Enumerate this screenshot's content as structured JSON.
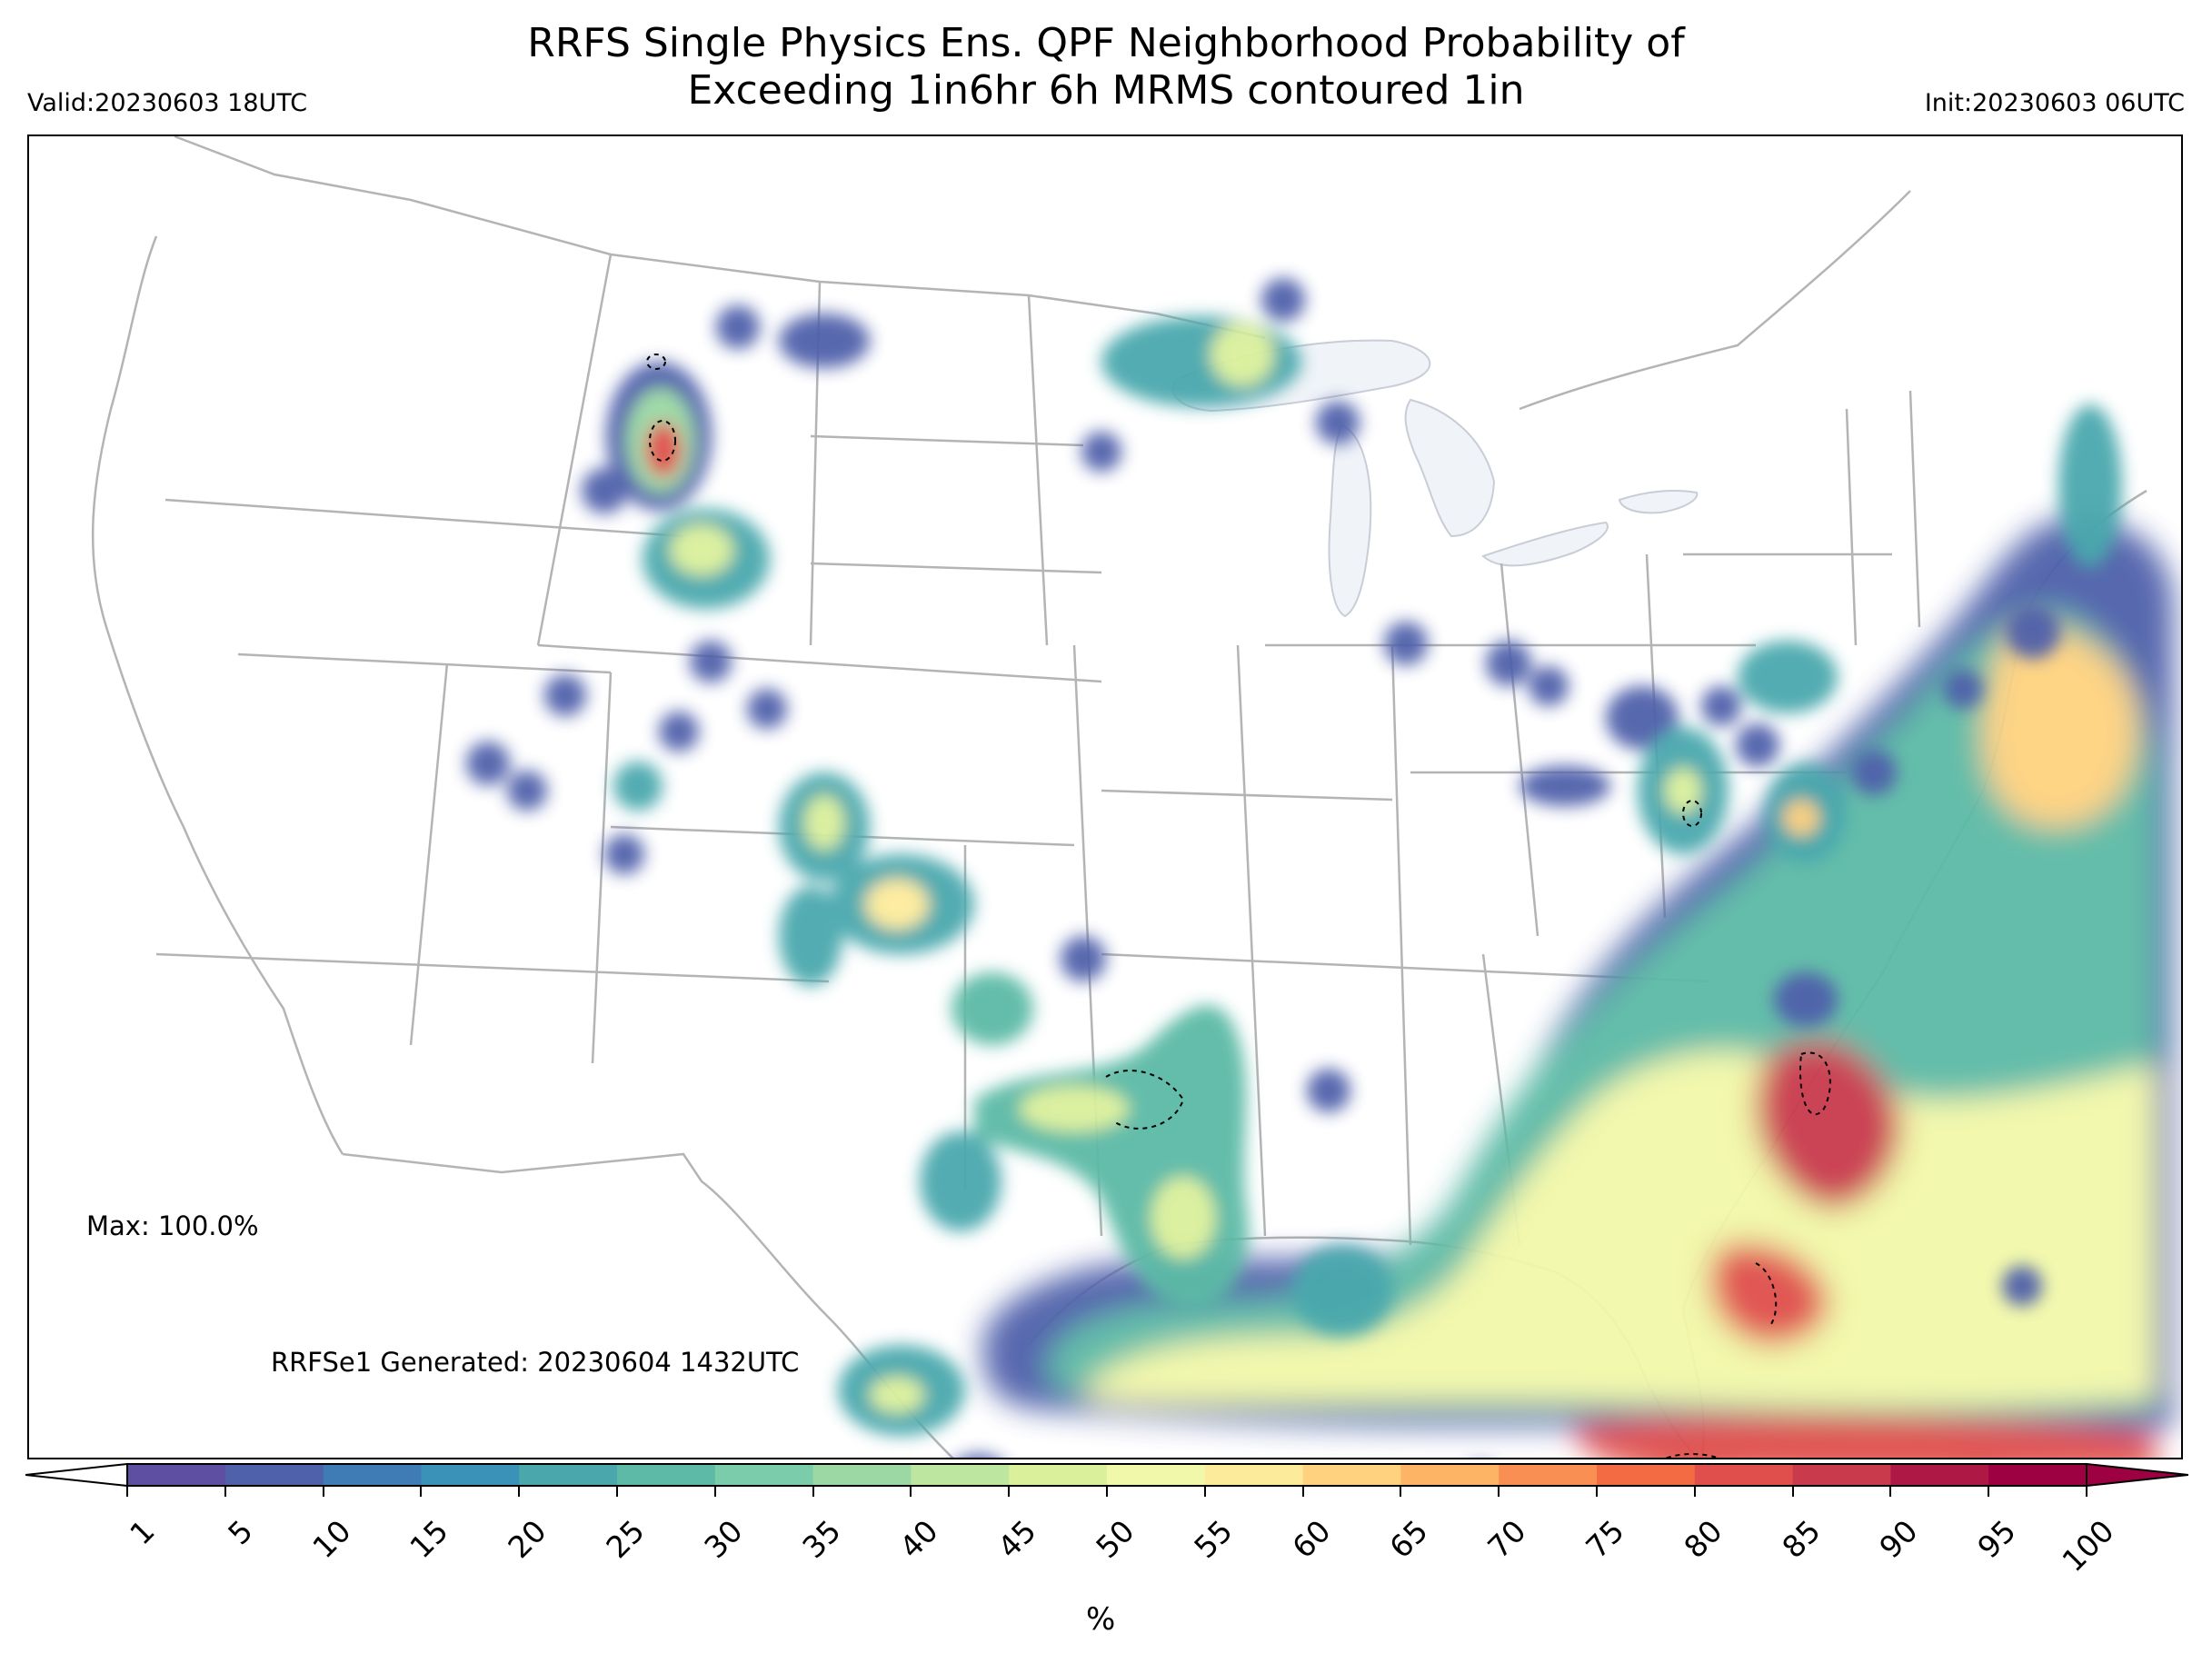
{
  "header": {
    "title_line1": "RRFS Single Physics Ens. QPF Neighborhood Probability of",
    "title_line2": "Exceeding 1in6hr 6h MRMS contoured 1in",
    "valid": "Valid:20230603 18UTC",
    "init": "Init:20230603 06UTC"
  },
  "annotations": {
    "max": "Max: 100.0%",
    "generated": "RRFSe1 Generated: 20230604 1432UTC"
  },
  "colorbar": {
    "unit": "%",
    "ticks": [
      "1",
      "5",
      "10",
      "15",
      "20",
      "25",
      "30",
      "35",
      "40",
      "45",
      "50",
      "55",
      "60",
      "65",
      "70",
      "75",
      "80",
      "85",
      "90",
      "95",
      "100"
    ],
    "colors": [
      "#5e4fa2",
      "#4f61aa",
      "#3f7bb5",
      "#3a92b9",
      "#4aa8ad",
      "#5cbaa6",
      "#7accaa",
      "#9bd8a4",
      "#bde6a0",
      "#daf09b",
      "#f2f8a9",
      "#fdeb9c",
      "#fed27f",
      "#fdb464",
      "#f98f52",
      "#f26b43",
      "#e04f4b",
      "#c93a4d",
      "#ae1845",
      "#9e0142"
    ],
    "under_color": "#ffffff",
    "over_color": "#9e0142"
  },
  "map": {
    "projection": "Lambert conformal CONUS",
    "field": "probability of exceeding 1 inch in 6 hours (%)",
    "contour": "MRMS 1 in (dashed black)",
    "land_color": "#ffffff",
    "lake_color": "#f0f3f8",
    "border_color": "#b0b0b0"
  }
}
